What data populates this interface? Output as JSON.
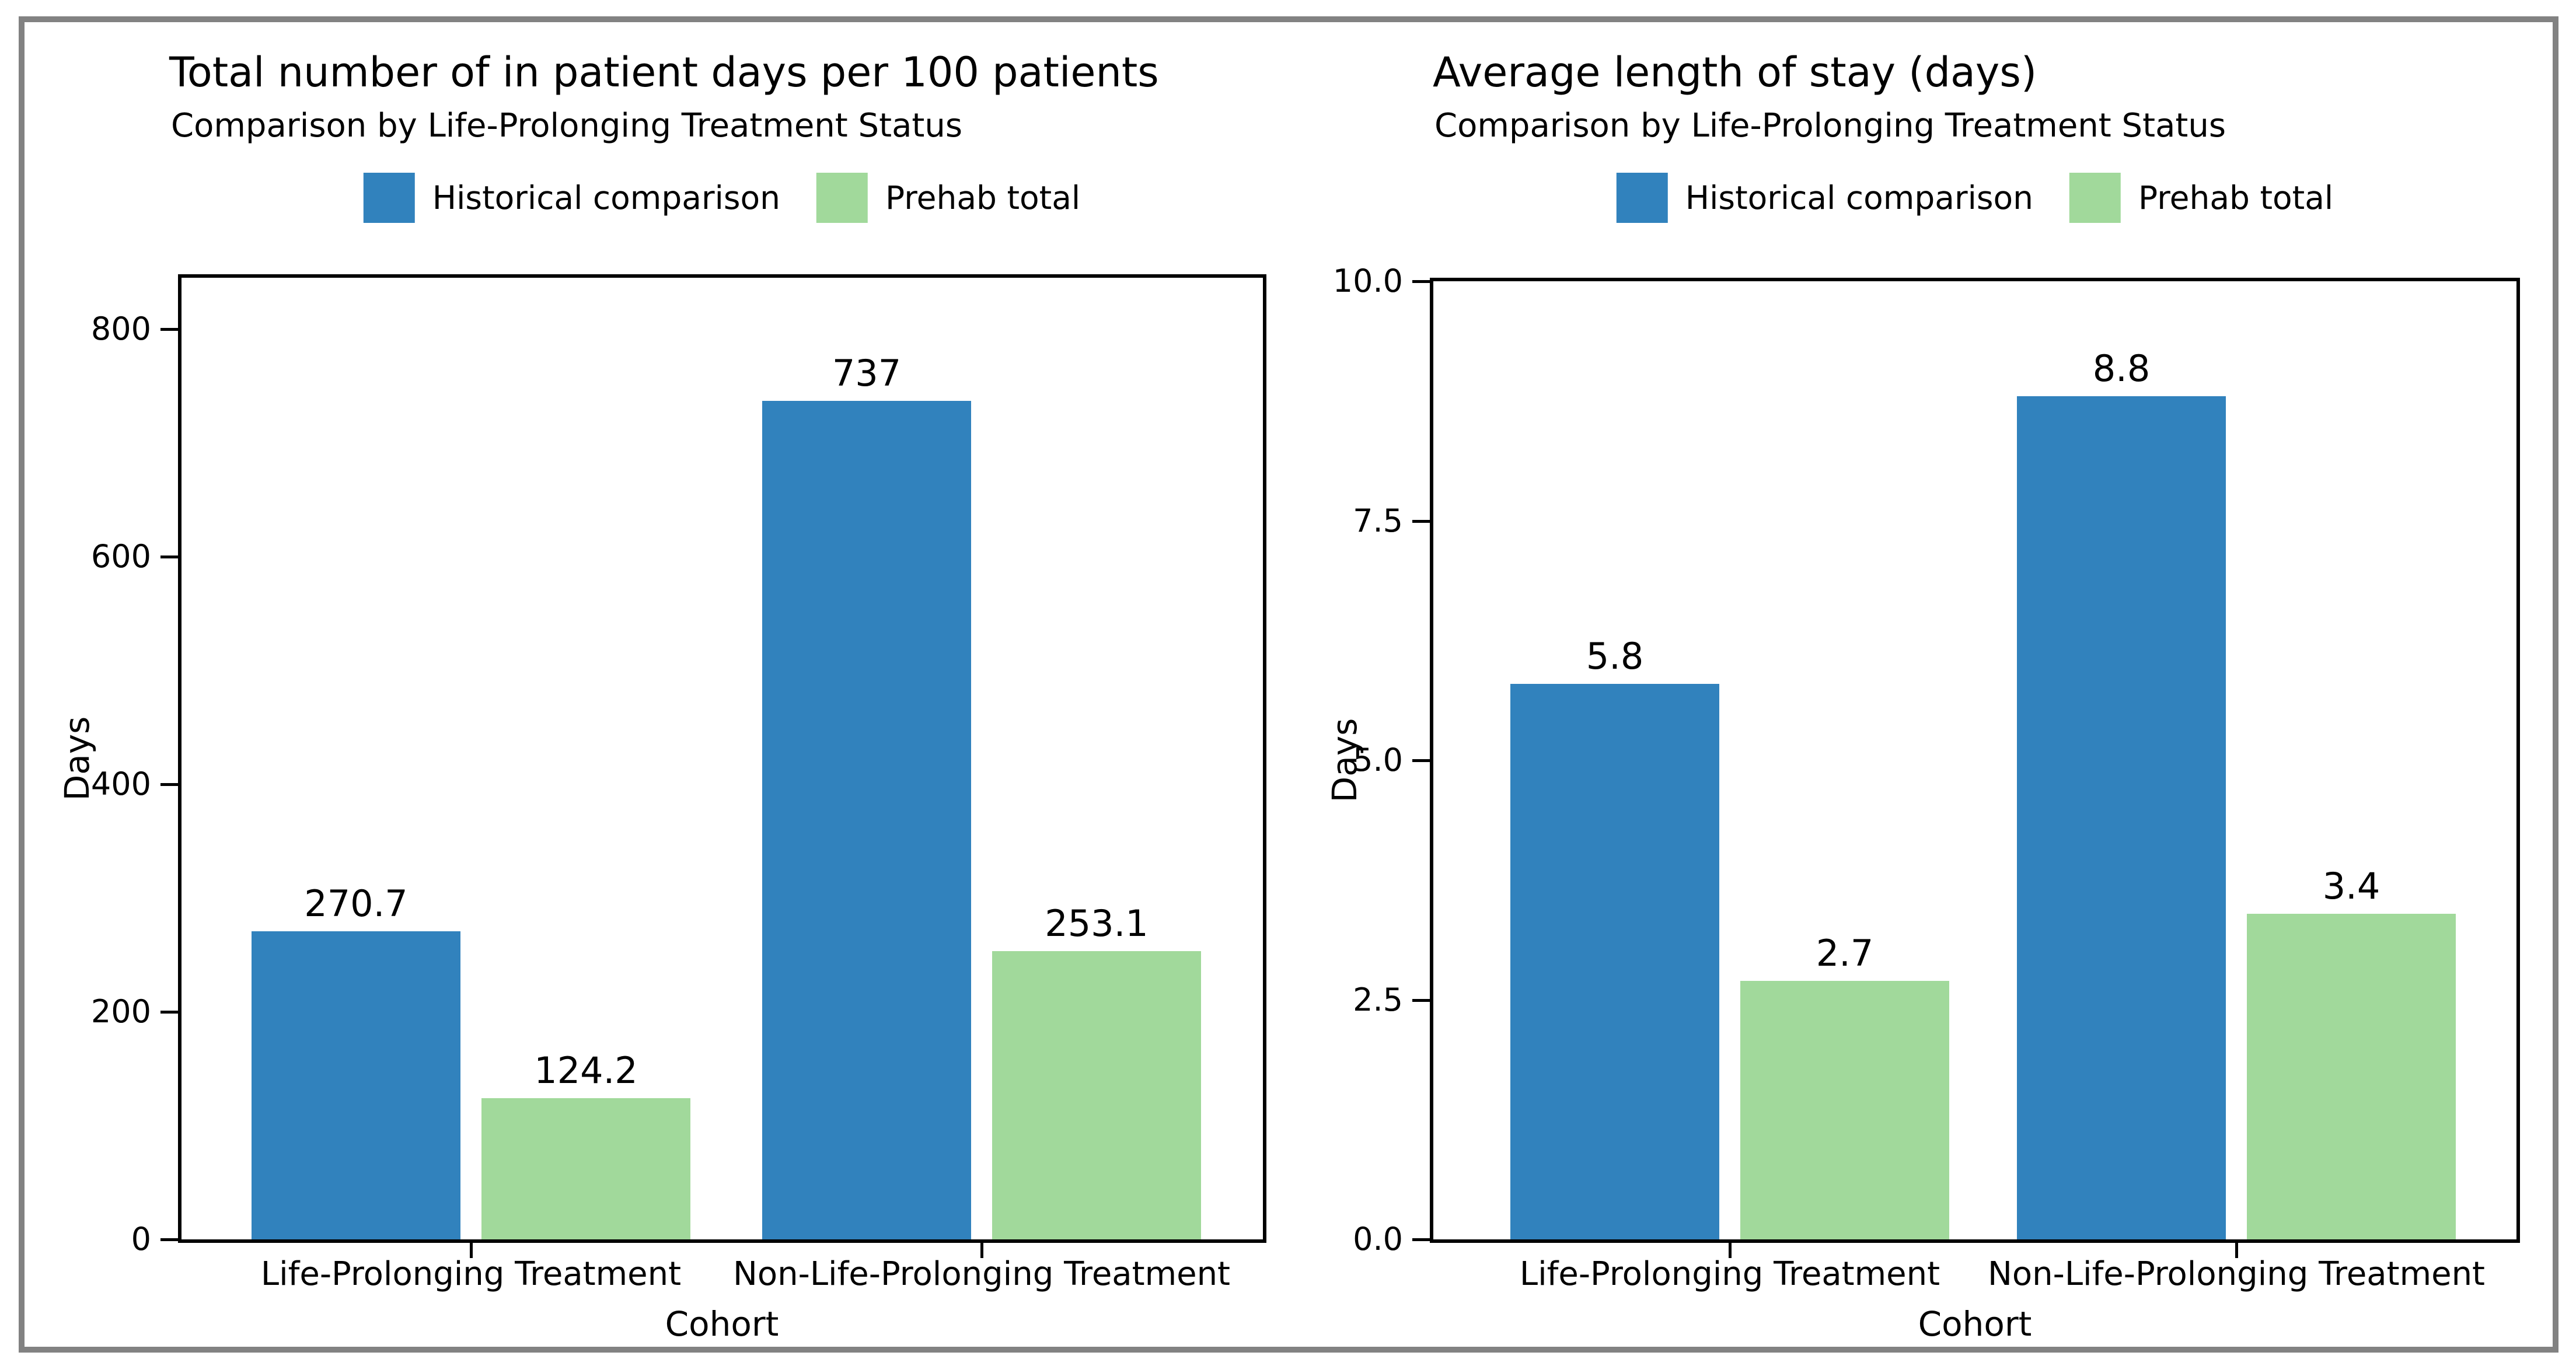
{
  "figure": {
    "frame_color": "#828282",
    "background": "#ffffff"
  },
  "chart_data": [
    {
      "type": "bar",
      "title": "Total number of in patient days per 100 patients",
      "subtitle": "Comparison by Life-Prolonging Treatment Status",
      "xlabel": "Cohort",
      "ylabel": "Days",
      "categories": [
        "Life-Prolonging Treatment",
        "Non-Life-Prolonging Treatment"
      ],
      "series": [
        {
          "name": "Historical comparison",
          "color": "#3182bd",
          "values": [
            270.7,
            737
          ],
          "labels": [
            "270.7",
            "737"
          ]
        },
        {
          "name": "Prehab total",
          "color": "#a1d99b",
          "values": [
            124.2,
            253.1
          ],
          "labels": [
            "124.2",
            "253.1"
          ]
        }
      ],
      "ylim": [
        0,
        845
      ],
      "yticks": [
        0,
        200,
        400,
        600,
        800
      ],
      "ytick_labels": [
        "0",
        "200",
        "400",
        "600",
        "800"
      ],
      "grid": false,
      "legend_position": "upper center"
    },
    {
      "type": "bar",
      "title": "Average length of stay (days)",
      "subtitle": "Comparison by Life-Prolonging Treatment Status",
      "xlabel": "Cohort",
      "ylabel": "Days",
      "categories": [
        "Life-Prolonging Treatment",
        "Non-Life-Prolonging Treatment"
      ],
      "series": [
        {
          "name": "Historical comparison",
          "color": "#3182bd",
          "values": [
            5.8,
            8.8
          ],
          "labels": [
            "5.8",
            "8.8"
          ]
        },
        {
          "name": "Prehab total",
          "color": "#a1d99b",
          "values": [
            2.7,
            3.4
          ],
          "labels": [
            "2.7",
            "3.4"
          ]
        }
      ],
      "ylim": [
        0,
        10
      ],
      "yticks": [
        0,
        2.5,
        5,
        7.5,
        10
      ],
      "ytick_labels": [
        "0.0",
        "2.5",
        "5.0",
        "7.5",
        "10.0"
      ],
      "grid": false,
      "legend_position": "upper center"
    }
  ]
}
